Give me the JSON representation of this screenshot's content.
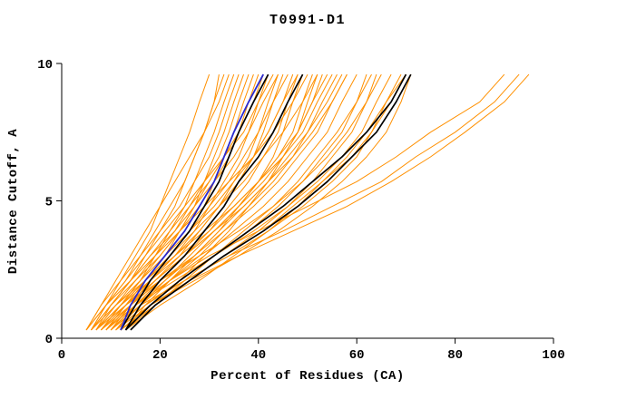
{
  "window": {
    "title": "T0991-D1"
  },
  "chart_data": {
    "type": "line",
    "title": "T0991-D1",
    "xlabel": "Percent of Residues (CA)",
    "ylabel": "Distance Cutoff, A",
    "xlim": [
      0,
      100
    ],
    "ylim": [
      0,
      10
    ],
    "xticks": [
      0,
      20,
      40,
      60,
      80,
      100
    ],
    "yticks": [
      0,
      5,
      10
    ],
    "grid": false,
    "legend": "none",
    "colors": {
      "background": "#ff9000",
      "highlight": "#000000",
      "reference": "#2a2ad0",
      "axes": "#000000"
    },
    "y_grid": [
      0.3,
      1.2,
      2.1,
      3.0,
      3.9,
      4.8,
      5.7,
      6.6,
      7.5,
      8.6,
      9.6
    ],
    "series": [
      {
        "name": "highlight-model-right-1",
        "color": "#000000",
        "width": 1.7,
        "x": [
          13,
          18,
          24,
          31,
          38,
          45,
          51,
          57,
          62,
          67,
          70
        ]
      },
      {
        "name": "highlight-model-right-2",
        "color": "#000000",
        "width": 1.7,
        "x": [
          14,
          19,
          26,
          33,
          41,
          48,
          54,
          59,
          64,
          68,
          71
        ]
      },
      {
        "name": "highlight-model-left-1",
        "color": "#000000",
        "width": 1.7,
        "x": [
          12,
          15,
          18,
          22,
          26,
          29,
          32,
          34,
          36,
          39,
          42
        ]
      },
      {
        "name": "highlight-model-left-2",
        "color": "#000000",
        "width": 1.7,
        "x": [
          13,
          16,
          20,
          25,
          29,
          33,
          36,
          40,
          43,
          46,
          49
        ]
      },
      {
        "name": "reference-model-blue",
        "color": "#2a2ad0",
        "width": 1.8,
        "x": [
          12,
          14,
          17,
          21,
          25,
          28,
          31,
          33,
          35,
          38,
          41
        ]
      }
    ],
    "background_lines": [
      [
        6,
        9,
        12,
        15,
        18,
        20,
        22,
        24,
        26,
        28,
        30
      ],
      [
        7,
        10,
        14,
        17,
        20,
        23,
        25,
        27,
        29,
        31,
        33
      ],
      [
        8,
        12,
        16,
        19,
        22,
        25,
        27,
        29,
        31,
        33,
        35
      ],
      [
        5,
        8,
        11,
        14,
        17,
        20,
        23,
        26,
        29,
        32,
        34
      ],
      [
        9,
        13,
        17,
        21,
        24,
        27,
        29,
        31,
        33,
        35,
        37
      ],
      [
        10,
        14,
        18,
        22,
        26,
        29,
        31,
        33,
        35,
        37,
        39
      ],
      [
        6,
        10,
        15,
        19,
        23,
        26,
        29,
        32,
        34,
        36,
        38
      ],
      [
        7,
        11,
        16,
        20,
        24,
        28,
        31,
        34,
        36,
        38,
        40
      ],
      [
        8,
        13,
        18,
        23,
        27,
        30,
        33,
        36,
        38,
        40,
        42
      ],
      [
        9,
        14,
        19,
        24,
        28,
        32,
        35,
        38,
        40,
        42,
        44
      ],
      [
        5,
        9,
        13,
        17,
        21,
        25,
        29,
        33,
        37,
        40,
        43
      ],
      [
        11,
        15,
        20,
        25,
        29,
        33,
        36,
        39,
        41,
        43,
        45
      ],
      [
        6,
        11,
        17,
        22,
        26,
        30,
        34,
        37,
        40,
        43,
        46
      ],
      [
        7,
        12,
        18,
        23,
        28,
        32,
        36,
        39,
        42,
        45,
        47
      ],
      [
        8,
        14,
        20,
        25,
        30,
        34,
        38,
        41,
        44,
        46,
        48
      ],
      [
        10,
        16,
        22,
        27,
        32,
        36,
        40,
        43,
        45,
        47,
        49
      ],
      [
        9,
        15,
        21,
        26,
        31,
        36,
        40,
        44,
        47,
        49,
        51
      ],
      [
        12,
        18,
        24,
        29,
        34,
        38,
        42,
        45,
        48,
        50,
        52
      ],
      [
        6,
        10,
        14,
        19,
        24,
        29,
        34,
        39,
        43,
        47,
        50
      ],
      [
        7,
        13,
        19,
        25,
        31,
        36,
        41,
        45,
        48,
        51,
        53
      ],
      [
        8,
        12,
        17,
        23,
        29,
        35,
        40,
        45,
        49,
        52,
        55
      ],
      [
        13,
        17,
        22,
        28,
        33,
        38,
        43,
        47,
        50,
        53,
        56
      ],
      [
        9,
        14,
        20,
        27,
        33,
        39,
        44,
        48,
        52,
        55,
        58
      ],
      [
        10,
        15,
        22,
        29,
        35,
        41,
        46,
        50,
        54,
        57,
        60
      ],
      [
        11,
        17,
        24,
        31,
        38,
        44,
        49,
        53,
        57,
        60,
        62
      ],
      [
        12,
        18,
        26,
        33,
        40,
        46,
        51,
        55,
        59,
        62,
        64
      ],
      [
        8,
        13,
        20,
        28,
        36,
        43,
        49,
        54,
        58,
        62,
        65
      ],
      [
        9,
        15,
        23,
        31,
        39,
        46,
        52,
        57,
        61,
        64,
        67
      ],
      [
        10,
        16,
        25,
        34,
        42,
        49,
        55,
        60,
        63,
        66,
        69
      ],
      [
        11,
        18,
        27,
        36,
        44,
        51,
        57,
        62,
        66,
        69,
        71
      ],
      [
        13,
        20,
        28,
        35,
        42,
        48,
        53,
        58,
        62,
        66,
        70
      ],
      [
        12,
        19,
        26,
        33,
        41,
        47,
        53,
        59,
        63,
        67,
        70
      ],
      [
        10,
        15,
        22,
        30,
        40,
        50,
        60,
        68,
        75,
        85,
        90
      ],
      [
        11,
        17,
        25,
        34,
        45,
        55,
        65,
        72,
        80,
        88,
        93
      ],
      [
        12,
        18,
        26,
        36,
        47,
        58,
        67,
        75,
        82,
        90,
        95
      ],
      [
        6,
        9,
        13,
        16,
        19,
        22,
        25,
        27,
        29,
        31,
        32
      ],
      [
        5,
        8,
        12,
        16,
        20,
        24,
        27,
        30,
        32,
        34,
        36
      ],
      [
        7,
        11,
        15,
        20,
        24,
        27,
        30,
        33,
        36,
        39,
        41
      ],
      [
        6,
        10,
        14,
        18,
        22,
        26,
        30,
        33,
        36,
        39,
        42
      ],
      [
        8,
        12,
        16,
        21,
        26,
        31,
        35,
        39,
        42,
        45,
        48
      ],
      [
        9,
        13,
        18,
        24,
        30,
        35,
        40,
        44,
        48,
        51,
        54
      ],
      [
        10,
        14,
        19,
        25,
        31,
        37,
        42,
        47,
        51,
        55,
        58
      ],
      [
        7,
        12,
        17,
        22,
        27,
        32,
        37,
        41,
        45,
        49,
        52
      ],
      [
        11,
        16,
        21,
        27,
        32,
        37,
        42,
        46,
        50,
        54,
        57
      ],
      [
        5,
        9,
        14,
        18,
        23,
        27,
        31,
        35,
        38,
        41,
        44
      ],
      [
        13,
        19,
        25,
        31,
        37,
        43,
        48,
        52,
        56,
        60,
        63
      ]
    ]
  }
}
